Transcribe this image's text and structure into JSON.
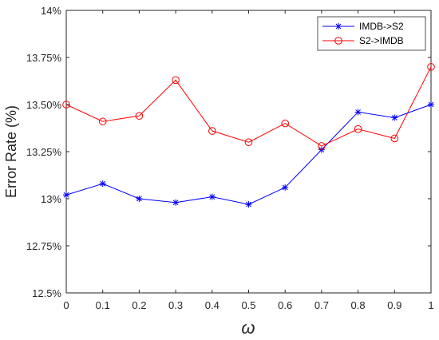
{
  "chart_data": {
    "type": "line",
    "title": "",
    "xlabel": "ω",
    "ylabel": "Error Rate (%)",
    "x": [
      0,
      0.1,
      0.2,
      0.3,
      0.4,
      0.5,
      0.6,
      0.7,
      0.8,
      0.9,
      1
    ],
    "xlim": [
      0,
      1
    ],
    "ylim": [
      12.5,
      14
    ],
    "xticks": [
      0,
      0.1,
      0.2,
      0.3,
      0.4,
      0.5,
      0.6,
      0.7,
      0.8,
      0.9,
      1
    ],
    "xtick_labels": [
      "0",
      "0.1",
      "0.2",
      "0.3",
      "0.4",
      "0.5",
      "0.6",
      "0.7",
      "0.8",
      "0.9",
      "1"
    ],
    "yticks": [
      12.5,
      12.75,
      13,
      13.25,
      13.5,
      13.75,
      14
    ],
    "ytick_labels": [
      "12.5%",
      "12.75%",
      "13%",
      "13.25%",
      "13.50%",
      "13.75%",
      "14%"
    ],
    "grid": false,
    "legend_position": "top-right",
    "series": [
      {
        "name": "IMDB->S2",
        "color": "#0000ff",
        "marker": "asterisk",
        "values": [
          13.02,
          13.08,
          13.0,
          12.98,
          13.01,
          12.97,
          13.06,
          13.26,
          13.46,
          13.43,
          13.5
        ]
      },
      {
        "name": "S2->IMDB",
        "color": "#ff0000",
        "marker": "circle",
        "values": [
          13.5,
          13.41,
          13.44,
          13.63,
          13.36,
          13.3,
          13.4,
          13.28,
          13.37,
          13.32,
          13.7
        ]
      }
    ]
  }
}
